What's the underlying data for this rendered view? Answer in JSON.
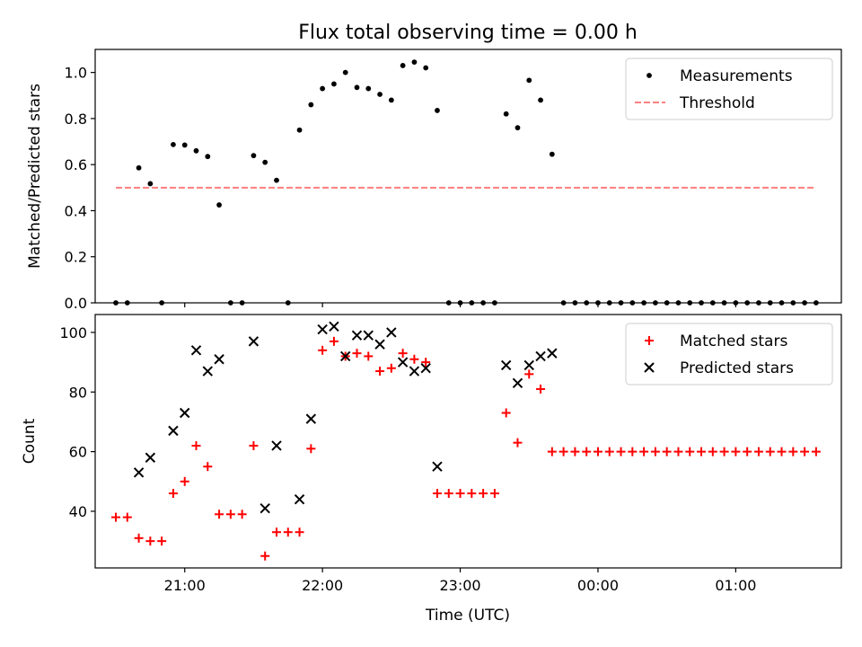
{
  "figure": {
    "title": "Flux total observing time = 0.00 h",
    "xlabel": "Time (UTC)"
  },
  "chart_data": [
    {
      "type": "scatter",
      "panel": "top",
      "ylabel": "Matched/Predicted stars",
      "xlim": [
        "20:21",
        "01:46"
      ],
      "ylim": [
        0,
        1.1
      ],
      "yticks": [
        "0.0",
        "0.2",
        "0.4",
        "0.6",
        "0.8",
        "1.0"
      ],
      "xticks": [
        "21:00",
        "22:00",
        "23:00",
        "00:00",
        "01:00"
      ],
      "x_tick_labels_visible": false,
      "legend": {
        "placement": "top-right",
        "entries": [
          "Measurements",
          "Threshold"
        ]
      },
      "series": [
        {
          "name": "Measurements",
          "marker": "dot",
          "color": "#000000",
          "points": [
            [
              "20:30",
              0.0
            ],
            [
              "20:35",
              0.0
            ],
            [
              "20:40",
              0.586
            ],
            [
              "20:45",
              0.517
            ],
            [
              "20:50",
              0.0
            ],
            [
              "20:55",
              0.687
            ],
            [
              "21:00",
              0.685
            ],
            [
              "21:05",
              0.66
            ],
            [
              "21:10",
              0.635
            ],
            [
              "21:15",
              0.425
            ],
            [
              "21:20",
              0.0
            ],
            [
              "21:25",
              0.0
            ],
            [
              "21:30",
              0.639
            ],
            [
              "21:35",
              0.61
            ],
            [
              "21:40",
              0.532
            ],
            [
              "21:45",
              0.0
            ],
            [
              "21:50",
              0.75
            ],
            [
              "21:55",
              0.86
            ],
            [
              "22:00",
              0.93
            ],
            [
              "22:05",
              0.95
            ],
            [
              "22:10",
              1.0
            ],
            [
              "22:15",
              0.935
            ],
            [
              "22:20",
              0.93
            ],
            [
              "22:25",
              0.905
            ],
            [
              "22:30",
              0.88
            ],
            [
              "22:35",
              1.03
            ],
            [
              "22:40",
              1.045
            ],
            [
              "22:45",
              1.02
            ],
            [
              "22:50",
              0.835
            ],
            [
              "22:55",
              0.0
            ],
            [
              "23:00",
              0.0
            ],
            [
              "23:05",
              0.0
            ],
            [
              "23:10",
              0.0
            ],
            [
              "23:15",
              0.0
            ],
            [
              "23:20",
              0.82
            ],
            [
              "23:25",
              0.76
            ],
            [
              "23:30",
              0.966
            ],
            [
              "23:35",
              0.88
            ],
            [
              "23:40",
              0.645
            ],
            [
              "23:45",
              0.0
            ],
            [
              "23:50",
              0.0
            ],
            [
              "23:55",
              0.0
            ],
            [
              "00:00",
              0.0
            ],
            [
              "00:05",
              0.0
            ],
            [
              "00:10",
              0.0
            ],
            [
              "00:15",
              0.0
            ],
            [
              "00:20",
              0.0
            ],
            [
              "00:25",
              0.0
            ],
            [
              "00:30",
              0.0
            ],
            [
              "00:35",
              0.0
            ],
            [
              "00:40",
              0.0
            ],
            [
              "00:45",
              0.0
            ],
            [
              "00:50",
              0.0
            ],
            [
              "00:55",
              0.0
            ],
            [
              "01:00",
              0.0
            ],
            [
              "01:05",
              0.0
            ],
            [
              "01:10",
              0.0
            ],
            [
              "01:15",
              0.0
            ],
            [
              "01:20",
              0.0
            ],
            [
              "01:25",
              0.0
            ],
            [
              "01:30",
              0.0
            ],
            [
              "01:35",
              0.0
            ]
          ]
        },
        {
          "name": "Threshold",
          "type": "line",
          "style": "dashed",
          "color": "#ff7f7f",
          "points": [
            [
              "20:30",
              0.5
            ],
            [
              "01:35",
              0.5
            ]
          ]
        }
      ]
    },
    {
      "type": "scatter",
      "panel": "bottom",
      "ylabel": "Count",
      "xlabel": "Time (UTC)",
      "xlim": [
        "20:21",
        "01:46"
      ],
      "ylim": [
        21,
        106
      ],
      "yticks": [
        "40",
        "60",
        "80",
        "100"
      ],
      "xticks": [
        "21:00",
        "22:00",
        "23:00",
        "00:00",
        "01:00"
      ],
      "legend": {
        "placement": "top-right",
        "entries": [
          "Matched stars",
          "Predicted stars"
        ]
      },
      "series": [
        {
          "name": "Matched stars",
          "marker": "plus",
          "color": "#ff0000",
          "points": [
            [
              "20:30",
              38
            ],
            [
              "20:35",
              38
            ],
            [
              "20:40",
              31
            ],
            [
              "20:45",
              30
            ],
            [
              "20:50",
              30
            ],
            [
              "20:55",
              46
            ],
            [
              "21:00",
              50
            ],
            [
              "21:05",
              62
            ],
            [
              "21:10",
              55
            ],
            [
              "21:15",
              39
            ],
            [
              "21:20",
              39
            ],
            [
              "21:25",
              39
            ],
            [
              "21:30",
              62
            ],
            [
              "21:35",
              25
            ],
            [
              "21:40",
              33
            ],
            [
              "21:45",
              33
            ],
            [
              "21:50",
              33
            ],
            [
              "21:55",
              61
            ],
            [
              "22:00",
              94
            ],
            [
              "22:05",
              97
            ],
            [
              "22:10",
              92
            ],
            [
              "22:15",
              93
            ],
            [
              "22:20",
              92
            ],
            [
              "22:25",
              87
            ],
            [
              "22:30",
              88
            ],
            [
              "22:35",
              93
            ],
            [
              "22:40",
              91
            ],
            [
              "22:45",
              90
            ],
            [
              "22:50",
              46
            ],
            [
              "22:55",
              46
            ],
            [
              "23:00",
              46
            ],
            [
              "23:05",
              46
            ],
            [
              "23:10",
              46
            ],
            [
              "23:15",
              46
            ],
            [
              "23:20",
              73
            ],
            [
              "23:25",
              63
            ],
            [
              "23:30",
              86
            ],
            [
              "23:35",
              81
            ],
            [
              "23:40",
              60
            ],
            [
              "23:45",
              60
            ],
            [
              "23:50",
              60
            ],
            [
              "23:55",
              60
            ],
            [
              "00:00",
              60
            ],
            [
              "00:05",
              60
            ],
            [
              "00:10",
              60
            ],
            [
              "00:15",
              60
            ],
            [
              "00:20",
              60
            ],
            [
              "00:25",
              60
            ],
            [
              "00:30",
              60
            ],
            [
              "00:35",
              60
            ],
            [
              "00:40",
              60
            ],
            [
              "00:45",
              60
            ],
            [
              "00:50",
              60
            ],
            [
              "00:55",
              60
            ],
            [
              "01:00",
              60
            ],
            [
              "01:05",
              60
            ],
            [
              "01:10",
              60
            ],
            [
              "01:15",
              60
            ],
            [
              "01:20",
              60
            ],
            [
              "01:25",
              60
            ],
            [
              "01:30",
              60
            ],
            [
              "01:35",
              60
            ]
          ]
        },
        {
          "name": "Predicted stars",
          "marker": "x",
          "color": "#000000",
          "points": [
            [
              "20:40",
              53
            ],
            [
              "20:45",
              58
            ],
            [
              "20:55",
              67
            ],
            [
              "21:00",
              73
            ],
            [
              "21:05",
              94
            ],
            [
              "21:10",
              87
            ],
            [
              "21:15",
              91
            ],
            [
              "21:30",
              97
            ],
            [
              "21:35",
              41
            ],
            [
              "21:40",
              62
            ],
            [
              "21:50",
              44
            ],
            [
              "21:55",
              71
            ],
            [
              "22:00",
              101
            ],
            [
              "22:05",
              102
            ],
            [
              "22:10",
              92
            ],
            [
              "22:15",
              99
            ],
            [
              "22:20",
              99
            ],
            [
              "22:25",
              96
            ],
            [
              "22:30",
              100
            ],
            [
              "22:35",
              90
            ],
            [
              "22:40",
              87
            ],
            [
              "22:45",
              88
            ],
            [
              "22:50",
              55
            ],
            [
              "23:20",
              89
            ],
            [
              "23:25",
              83
            ],
            [
              "23:30",
              89
            ],
            [
              "23:35",
              92
            ],
            [
              "23:40",
              93
            ]
          ]
        }
      ]
    }
  ]
}
